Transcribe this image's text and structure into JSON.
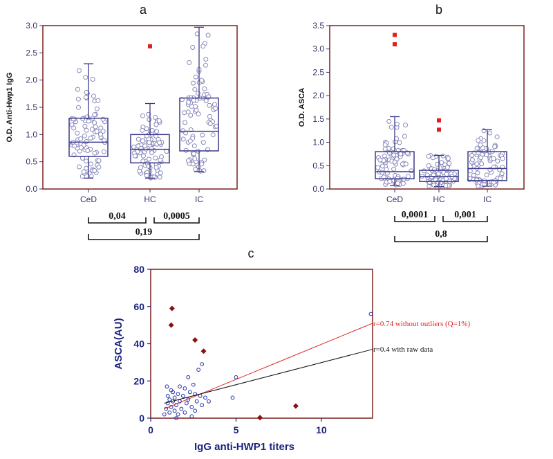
{
  "chart_data": [
    {
      "id": "a",
      "type": "box",
      "panel_label": "a",
      "ylabel": "O.D. Anti-Hwp1 IgG",
      "ylim": [
        0,
        3.0
      ],
      "yticks": [
        "0.0",
        "0.5",
        "1.0",
        "1.5",
        "2.0",
        "2.5",
        "3.0"
      ],
      "categories": [
        "CeD",
        "HC",
        "IC"
      ],
      "boxes": [
        {
          "q1": 0.6,
          "median": 0.86,
          "q3": 1.3,
          "whisker_low": 0.2,
          "whisker_high": 2.3,
          "outliers": []
        },
        {
          "q1": 0.48,
          "median": 0.73,
          "q3": 1.0,
          "whisker_low": 0.2,
          "whisker_high": 1.57,
          "outliers": [
            2.62
          ]
        },
        {
          "q1": 0.7,
          "median": 1.06,
          "q3": 1.67,
          "whisker_low": 0.32,
          "whisker_high": 2.97,
          "outliers": []
        }
      ],
      "comparisons": [
        {
          "from": "CeD",
          "to": "HC",
          "p": "0,04",
          "row": 1
        },
        {
          "from": "HC",
          "to": "IC",
          "p": "0,0005",
          "row": 1
        },
        {
          "from": "CeD",
          "to": "IC",
          "p": "0,19",
          "row": 2
        }
      ],
      "colors": {
        "box": "#3a3a8c",
        "frame": "#7b1f1f",
        "outlier": "#e02020",
        "point": "#8888bb"
      }
    },
    {
      "id": "b",
      "type": "box",
      "panel_label": "b",
      "ylabel": "O.D. ASCA",
      "ylim": [
        0,
        3.5
      ],
      "yticks": [
        "0.0",
        "0.5",
        "1.0",
        "1.5",
        "2.0",
        "2.5",
        "3.0",
        "3.5"
      ],
      "categories": [
        "CeD",
        "HC",
        "IC"
      ],
      "boxes": [
        {
          "q1": 0.22,
          "median": 0.37,
          "q3": 0.8,
          "whisker_low": 0.08,
          "whisker_high": 1.55,
          "outliers": [
            3.3,
            3.1
          ]
        },
        {
          "q1": 0.16,
          "median": 0.27,
          "q3": 0.4,
          "whisker_low": 0.05,
          "whisker_high": 0.72,
          "outliers": [
            1.47,
            1.27
          ]
        },
        {
          "q1": 0.18,
          "median": 0.44,
          "q3": 0.8,
          "whisker_low": 0.06,
          "whisker_high": 1.27,
          "outliers": []
        }
      ],
      "comparisons": [
        {
          "from": "CeD",
          "to": "HC",
          "p": "0,0001",
          "row": 1
        },
        {
          "from": "HC",
          "to": "IC",
          "p": "0,001",
          "row": 1
        },
        {
          "from": "CeD",
          "to": "IC",
          "p": "0,8",
          "row": 2
        }
      ],
      "colors": {
        "box": "#3a3a8c",
        "frame": "#7b1f1f",
        "outlier": "#e02020",
        "point": "#8888bb"
      }
    },
    {
      "id": "c",
      "type": "scatter",
      "panel_label": "c",
      "xlabel": "IgG anti-HWP1 titers",
      "ylabel": "ASCA(AU)",
      "xlim": [
        0,
        13
      ],
      "ylim": [
        0,
        80
      ],
      "xticks": [
        "0",
        "5",
        "10"
      ],
      "yticks": [
        "0",
        "20",
        "40",
        "60",
        "80"
      ],
      "points": [
        [
          0.8,
          2
        ],
        [
          0.9,
          5
        ],
        [
          1.0,
          8
        ],
        [
          1.0,
          12
        ],
        [
          1.1,
          3
        ],
        [
          1.2,
          6
        ],
        [
          1.2,
          15
        ],
        [
          1.3,
          9
        ],
        [
          1.4,
          4
        ],
        [
          1.4,
          11
        ],
        [
          1.5,
          7
        ],
        [
          1.6,
          13
        ],
        [
          1.6,
          2
        ],
        [
          1.7,
          9
        ],
        [
          1.8,
          5
        ],
        [
          1.9,
          12
        ],
        [
          2.0,
          16
        ],
        [
          2.0,
          3
        ],
        [
          2.1,
          8
        ],
        [
          2.2,
          10
        ],
        [
          2.3,
          14
        ],
        [
          2.4,
          6
        ],
        [
          2.5,
          18
        ],
        [
          2.6,
          4
        ],
        [
          2.7,
          9
        ],
        [
          2.8,
          26
        ],
        [
          2.9,
          12
        ],
        [
          3.0,
          29
        ],
        [
          3.0,
          7
        ],
        [
          3.2,
          11
        ],
        [
          2.4,
          1
        ],
        [
          1.5,
          0
        ],
        [
          1.1,
          10
        ],
        [
          0.95,
          17
        ],
        [
          1.3,
          14
        ],
        [
          1.7,
          17
        ],
        [
          2.2,
          22
        ],
        [
          2.6,
          13
        ],
        [
          3.4,
          9
        ],
        [
          5.0,
          22
        ],
        [
          4.8,
          11
        ],
        [
          12.9,
          56
        ]
      ],
      "outliers": [
        [
          1.25,
          59
        ],
        [
          1.2,
          50
        ],
        [
          2.6,
          42
        ],
        [
          3.1,
          36
        ],
        [
          8.5,
          6.5
        ],
        [
          6.4,
          0.3
        ]
      ],
      "fits": [
        {
          "label": "r=0.74 without outliers (Q=1%)",
          "x": [
            0.8,
            13
          ],
          "y": [
            5,
            51
          ],
          "color": "#e02020"
        },
        {
          "label": "r=0.4 with raw data",
          "x": [
            0.8,
            13
          ],
          "y": [
            8,
            37
          ],
          "color": "#111111"
        }
      ],
      "colors": {
        "frame": "#7b1f1f",
        "point": "#2233aa",
        "outlier": "#8b1010",
        "axis_text": "#1a237e"
      }
    }
  ]
}
